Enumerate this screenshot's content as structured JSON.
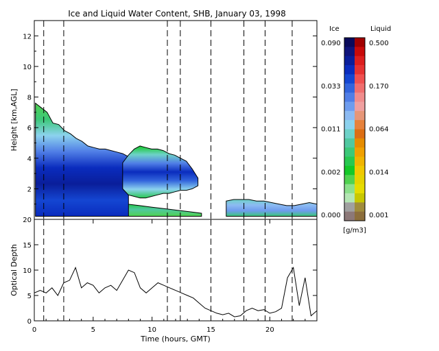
{
  "chart_data": [
    {
      "type": "heatmap",
      "title": "Ice and Liquid Water Content, SHB, January 03, 1998",
      "xlabel": "",
      "ylabel": "Height [km,AGL]",
      "xlim": [
        0,
        24
      ],
      "ylim": [
        0,
        13
      ],
      "yticks": [
        2,
        4,
        6,
        8,
        10,
        12
      ],
      "regions": [
        {
          "name": "main_cloud",
          "x": [
            0.1,
            8.0
          ],
          "top": [
            7.6,
            7.3,
            7.0,
            6.3,
            6.2,
            5.8,
            5.6,
            5.3,
            5.1,
            4.8,
            4.7,
            4.6,
            4.6,
            4.5,
            4.4,
            4.3,
            4.1
          ],
          "base": 0.2
        },
        {
          "name": "mid_cloud",
          "x": [
            7.5,
            13.9
          ],
          "top": [
            3.7,
            4.2,
            4.6,
            4.8,
            4.7,
            4.6,
            4.6,
            4.5,
            4.3,
            4.2,
            4.0,
            3.8,
            3.3,
            2.7
          ],
          "bottom": [
            2.0,
            1.6,
            1.5,
            1.4,
            1.4,
            1.5,
            1.6,
            1.7,
            1.7,
            1.8,
            1.9,
            1.9,
            2.0,
            2.2
          ]
        },
        {
          "name": "low_cloud",
          "x": [
            5.8,
            14.2
          ],
          "top": [
            1.1,
            1.1,
            1.0,
            0.9,
            0.8,
            0.7,
            0.6,
            0.5,
            0.4
          ],
          "base": 0.2
        },
        {
          "name": "late_low_cloud",
          "x": [
            16.3,
            24.0
          ],
          "top": [
            1.2,
            1.3,
            1.3,
            1.3,
            1.2,
            1.2,
            1.1,
            1.0,
            0.9,
            0.9,
            1.0,
            1.1,
            1.0
          ],
          "base": 0.2
        }
      ],
      "dashed_times": [
        0.8,
        2.5,
        11.3,
        12.4,
        15.0,
        17.8,
        19.6,
        21.9
      ],
      "colorbar": {
        "ice_label": "Ice",
        "liquid_label": "Liquid",
        "units": "[g/m3]",
        "ice_ticks": [
          "0.090",
          "0.033",
          "0.011",
          "0.002",
          "0.000"
        ],
        "liquid_ticks": [
          "0.500",
          "0.170",
          "0.064",
          "0.014",
          "0.001"
        ],
        "ice_colors": [
          "#0a0a5a",
          "#10147a",
          "#0a1e9a",
          "#0a2cbe",
          "#1446d2",
          "#3264dc",
          "#507ee6",
          "#6e9cee",
          "#8cbaf2",
          "#8cd2ee",
          "#6ed2c8",
          "#50c8a0",
          "#3cc878",
          "#28c850",
          "#14c828",
          "#50d250",
          "#8ce08c",
          "#b4e6b4",
          "#a0a0a0",
          "#8c7878"
        ],
        "liquid_colors": [
          "#a00000",
          "#c80a0a",
          "#dc1e1e",
          "#e63232",
          "#f05050",
          "#f06e6e",
          "#f08c8c",
          "#f0a0a0",
          "#e69678",
          "#e6823c",
          "#dc6e14",
          "#e68c00",
          "#f0a000",
          "#f0b400",
          "#f0c800",
          "#e6d200",
          "#e6dc00",
          "#c8c800",
          "#a08c3c",
          "#8c6e3c"
        ]
      }
    },
    {
      "type": "line",
      "xlabel": "Time (hours, GMT)",
      "ylabel": "Optical Depth",
      "xlim": [
        0,
        24
      ],
      "ylim": [
        0,
        20
      ],
      "xticks": [
        0,
        5,
        10,
        15,
        20
      ],
      "yticks": [
        0,
        5,
        10,
        15,
        20
      ],
      "x": [
        0.0,
        0.5,
        1.0,
        1.5,
        2.0,
        2.5,
        3.0,
        3.5,
        4.0,
        4.5,
        5.0,
        5.5,
        6.0,
        6.5,
        7.0,
        7.5,
        8.0,
        8.5,
        9.0,
        9.5,
        10.0,
        10.5,
        11.0,
        11.5,
        12.0,
        12.5,
        13.0,
        13.5,
        14.0,
        14.5,
        15.0,
        15.5,
        16.0,
        16.5,
        17.0,
        17.5,
        18.0,
        18.5,
        19.0,
        19.5,
        20.0,
        20.5,
        21.0,
        21.5,
        22.0,
        22.5,
        23.0,
        23.5,
        24.0
      ],
      "y": [
        5.5,
        6.0,
        5.5,
        6.5,
        5.0,
        7.5,
        8.0,
        10.5,
        6.5,
        7.5,
        7.0,
        5.5,
        6.5,
        7.0,
        6.0,
        8.0,
        10.0,
        9.5,
        6.5,
        5.5,
        6.5,
        7.5,
        7.0,
        6.5,
        6.0,
        5.5,
        5.0,
        4.5,
        3.5,
        2.5,
        2.0,
        1.5,
        1.2,
        1.5,
        0.8,
        1.0,
        2.0,
        2.5,
        2.0,
        2.2,
        1.5,
        1.8,
        2.5,
        8.5,
        10.5,
        3.0,
        8.5,
        1.0,
        2.0
      ]
    }
  ]
}
